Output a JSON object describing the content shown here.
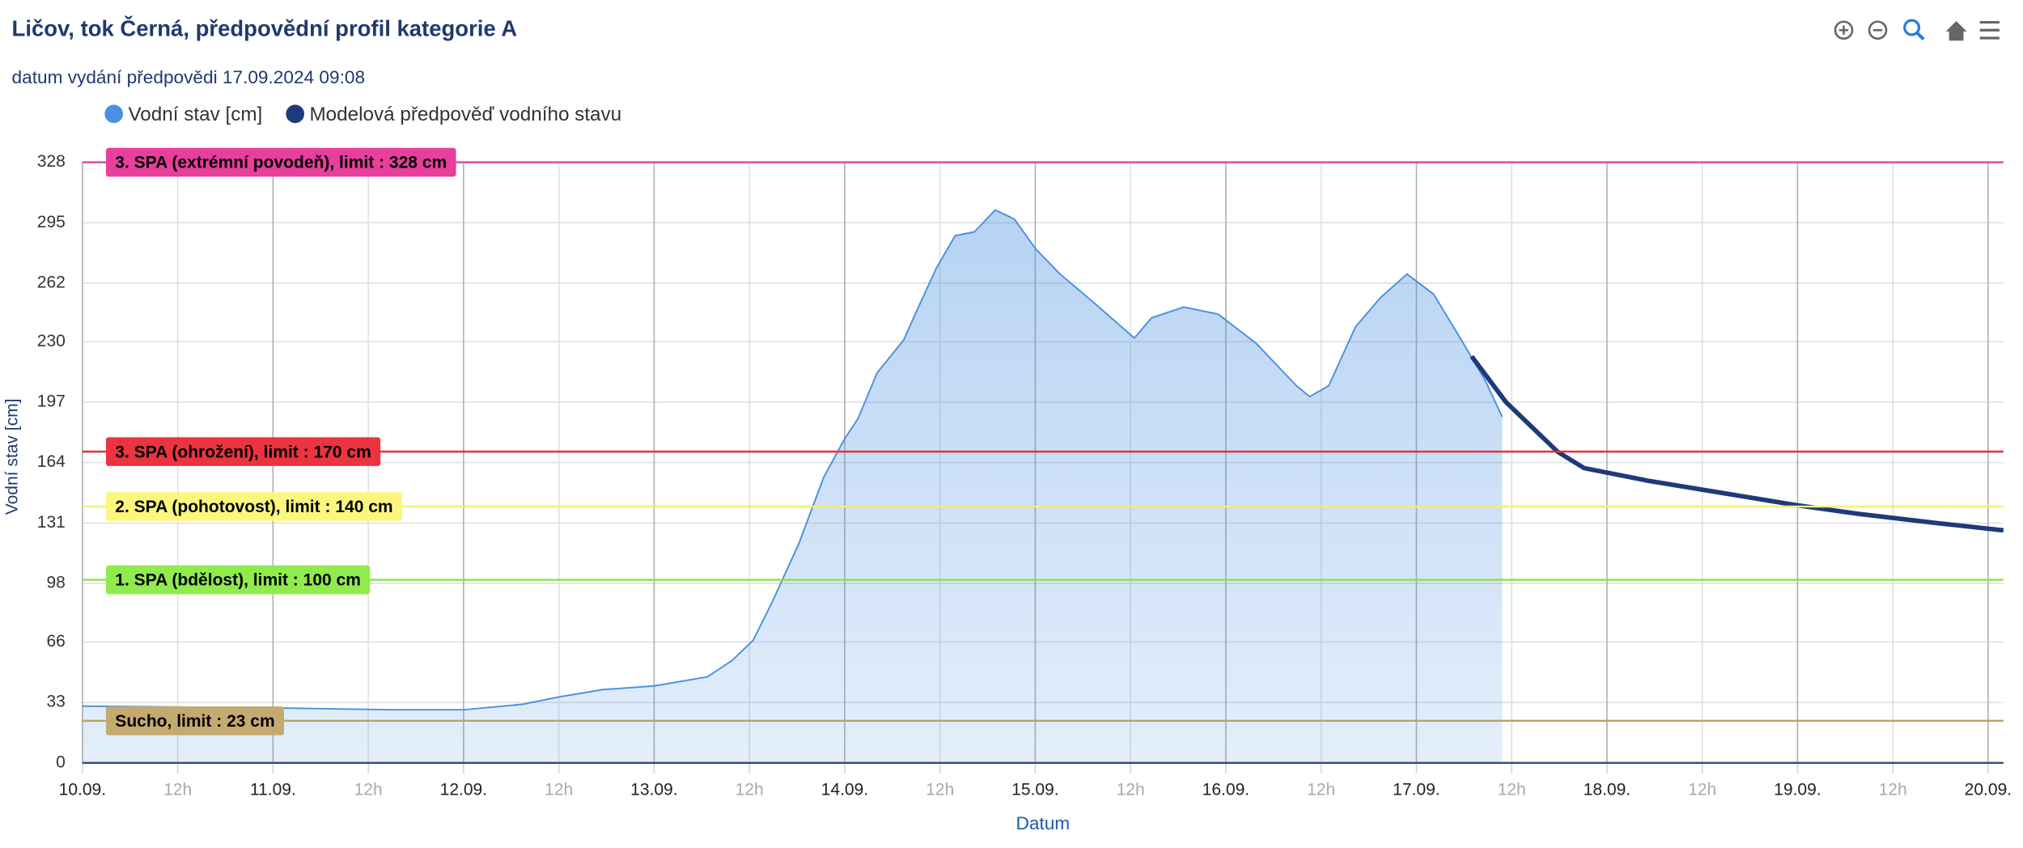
{
  "chart_data": {
    "type": "area",
    "title": "Ličov, tok Černá, předpovědní profil kategorie A",
    "subtitle": "datum vydání předpovědi 17.09.2024 09:08",
    "xlabel": "Datum",
    "ylabel": "Vodní stav [cm]",
    "xlim": [
      10,
      20.08
    ],
    "ylim": [
      0,
      328
    ],
    "yticks": [
      0,
      33,
      66,
      98,
      131,
      164,
      197,
      230,
      262,
      295,
      328
    ],
    "xticks": [
      {
        "value": 10,
        "label": "10.09."
      },
      {
        "value": 10.5,
        "label": "12h"
      },
      {
        "value": 11,
        "label": "11.09."
      },
      {
        "value": 11.5,
        "label": "12h"
      },
      {
        "value": 12,
        "label": "12.09."
      },
      {
        "value": 12.5,
        "label": "12h"
      },
      {
        "value": 13,
        "label": "13.09."
      },
      {
        "value": 13.5,
        "label": "12h"
      },
      {
        "value": 14,
        "label": "14.09."
      },
      {
        "value": 14.5,
        "label": "12h"
      },
      {
        "value": 15,
        "label": "15.09."
      },
      {
        "value": 15.5,
        "label": "12h"
      },
      {
        "value": 16,
        "label": "16.09."
      },
      {
        "value": 16.5,
        "label": "12h"
      },
      {
        "value": 17,
        "label": "17.09."
      },
      {
        "value": 17.5,
        "label": "12h"
      },
      {
        "value": 18,
        "label": "18.09."
      },
      {
        "value": 18.5,
        "label": "12h"
      },
      {
        "value": 19,
        "label": "19.09."
      },
      {
        "value": 19.5,
        "label": "12h"
      },
      {
        "value": 20,
        "label": "20.09."
      }
    ],
    "grid": true,
    "series": [
      {
        "name": "Vodní stav [cm]",
        "color": "#4a90e2",
        "area": true,
        "x": [
          10.0,
          11.0,
          11.63,
          12.0,
          12.31,
          12.5,
          12.73,
          13.0,
          13.28,
          13.41,
          13.52,
          13.62,
          13.76,
          13.89,
          14.0,
          14.07,
          14.17,
          14.31,
          14.37,
          14.48,
          14.58,
          14.68,
          14.79,
          14.89,
          15.0,
          15.13,
          15.3,
          15.52,
          15.61,
          15.78,
          15.96,
          16.16,
          16.37,
          16.44,
          16.54,
          16.68,
          16.81,
          16.95,
          17.09,
          17.23,
          17.36,
          17.45
        ],
        "values": [
          31,
          30,
          29,
          29,
          32,
          36,
          40,
          42,
          47,
          56,
          67,
          88,
          120,
          156,
          177,
          188,
          213,
          231,
          245,
          270,
          288,
          290,
          302,
          297,
          281,
          267,
          252,
          232,
          243,
          249,
          245,
          229,
          206,
          200,
          206,
          238,
          254,
          267,
          256,
          232,
          209,
          189
        ]
      },
      {
        "name": "Modelová předpověď vodního stavu",
        "color": "#1f3a7a",
        "area": false,
        "x": [
          17.29,
          17.47,
          17.74,
          17.88,
          18.22,
          18.63,
          18.98,
          19.32,
          19.73,
          20.08
        ],
        "values": [
          222,
          197,
          170,
          161,
          154,
          147,
          141,
          136,
          131,
          127
        ]
      }
    ],
    "plot_lines": [
      {
        "label": "3. SPA (extrémní povodeň), limit : 328 cm",
        "value": 328,
        "color": "#e040a0",
        "label_color": "#e83e9c"
      },
      {
        "label": "3. SPA (ohrožení), limit : 170 cm",
        "value": 170,
        "color": "#e8303c",
        "label_color": "#ec3340"
      },
      {
        "label": "2. SPA (pohotovost), limit : 140 cm",
        "value": 140,
        "color": "#f2f07a",
        "label_color": "#fbf77e"
      },
      {
        "label": "1. SPA (bdělost), limit : 100 cm",
        "value": 100,
        "color": "#8ae04a",
        "label_color": "#90ec4c"
      },
      {
        "label": "Sucho, limit : 23 cm",
        "value": 23,
        "color": "#bba265",
        "label_color": "#c4aa70"
      }
    ]
  }
}
